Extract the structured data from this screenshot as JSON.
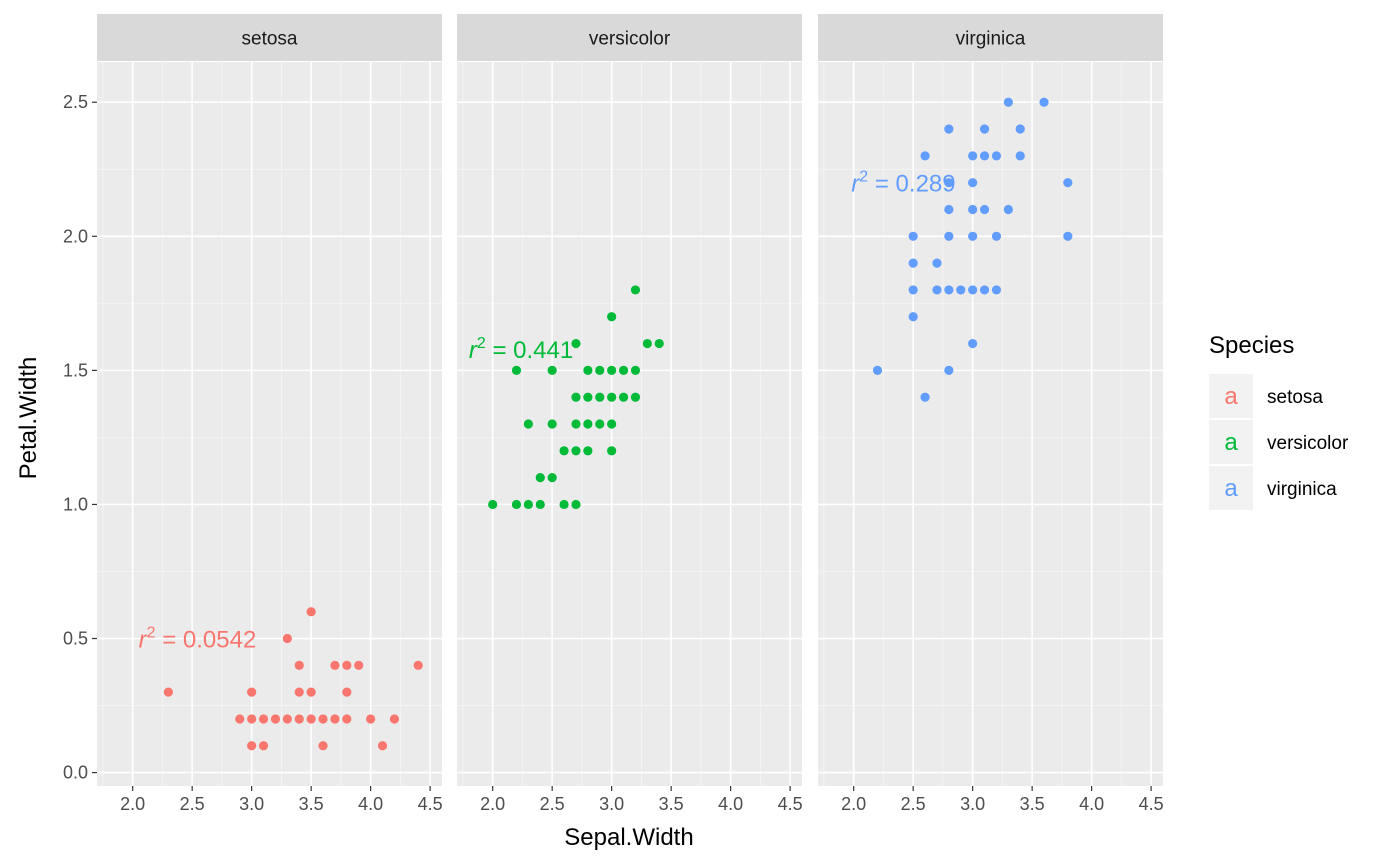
{
  "chart_data": {
    "type": "scatter",
    "xlabel": "Sepal.Width",
    "ylabel": "Petal.Width",
    "xlim": [
      1.7,
      4.6
    ],
    "ylim": [
      -0.05,
      2.65
    ],
    "x_ticks": [
      "2.0",
      "2.5",
      "3.0",
      "3.5",
      "4.0",
      "4.5"
    ],
    "y_ticks": [
      "0.0",
      "0.5",
      "1.0",
      "1.5",
      "2.0",
      "2.5"
    ],
    "grid": true,
    "facets": [
      "setosa",
      "versicolor",
      "virginica"
    ],
    "legend": {
      "title": "Species",
      "position": "right",
      "entries": [
        {
          "label": "setosa",
          "color": "#F8766D"
        },
        {
          "label": "versicolor",
          "color": "#00BA38"
        },
        {
          "label": "virginica",
          "color": "#619CFF"
        }
      ],
      "key_glyph": "a"
    },
    "panels": [
      {
        "facet": "setosa",
        "color": "#F8766D",
        "annotation": {
          "key": "r",
          "exponent": "2",
          "text": " = 0.0542",
          "x": 2.05,
          "y": 0.5
        },
        "points": [
          [
            2.3,
            0.3
          ],
          [
            2.9,
            0.2
          ],
          [
            3.0,
            0.2
          ],
          [
            3.0,
            0.1
          ],
          [
            3.0,
            0.3
          ],
          [
            3.1,
            0.2
          ],
          [
            3.1,
            0.1
          ],
          [
            3.2,
            0.2
          ],
          [
            3.3,
            0.2
          ],
          [
            3.3,
            0.5
          ],
          [
            3.4,
            0.2
          ],
          [
            3.4,
            0.4
          ],
          [
            3.4,
            0.3
          ],
          [
            3.5,
            0.2
          ],
          [
            3.5,
            0.3
          ],
          [
            3.5,
            0.6
          ],
          [
            3.6,
            0.2
          ],
          [
            3.6,
            0.1
          ],
          [
            3.7,
            0.2
          ],
          [
            3.7,
            0.4
          ],
          [
            3.8,
            0.2
          ],
          [
            3.8,
            0.3
          ],
          [
            3.8,
            0.4
          ],
          [
            3.9,
            0.4
          ],
          [
            4.0,
            0.2
          ],
          [
            4.1,
            0.1
          ],
          [
            4.2,
            0.2
          ],
          [
            4.4,
            0.4
          ]
        ]
      },
      {
        "facet": "versicolor",
        "color": "#00BA38",
        "annotation": {
          "key": "r",
          "exponent": "2",
          "text": " = 0.441",
          "x": 1.8,
          "y": 1.58
        },
        "points": [
          [
            2.0,
            1.0
          ],
          [
            2.2,
            1.0
          ],
          [
            2.2,
            1.5
          ],
          [
            2.3,
            1.0
          ],
          [
            2.3,
            1.3
          ],
          [
            2.4,
            1.0
          ],
          [
            2.4,
            1.1
          ],
          [
            2.5,
            1.1
          ],
          [
            2.5,
            1.3
          ],
          [
            2.5,
            1.5
          ],
          [
            2.6,
            1.0
          ],
          [
            2.6,
            1.2
          ],
          [
            2.7,
            1.0
          ],
          [
            2.7,
            1.2
          ],
          [
            2.7,
            1.3
          ],
          [
            2.7,
            1.4
          ],
          [
            2.7,
            1.6
          ],
          [
            2.8,
            1.2
          ],
          [
            2.8,
            1.3
          ],
          [
            2.8,
            1.4
          ],
          [
            2.8,
            1.5
          ],
          [
            2.9,
            1.3
          ],
          [
            2.9,
            1.4
          ],
          [
            2.9,
            1.5
          ],
          [
            3.0,
            1.2
          ],
          [
            3.0,
            1.3
          ],
          [
            3.0,
            1.4
          ],
          [
            3.0,
            1.5
          ],
          [
            3.0,
            1.7
          ],
          [
            3.1,
            1.4
          ],
          [
            3.1,
            1.5
          ],
          [
            3.2,
            1.4
          ],
          [
            3.2,
            1.5
          ],
          [
            3.2,
            1.8
          ],
          [
            3.3,
            1.6
          ],
          [
            3.4,
            1.6
          ]
        ]
      },
      {
        "facet": "virginica",
        "color": "#619CFF",
        "annotation": {
          "key": "r",
          "exponent": "2",
          "text": " = 0.289",
          "x": 1.98,
          "y": 2.2
        },
        "points": [
          [
            2.2,
            1.5
          ],
          [
            2.5,
            1.7
          ],
          [
            2.5,
            1.8
          ],
          [
            2.5,
            1.9
          ],
          [
            2.5,
            2.0
          ],
          [
            2.6,
            1.4
          ],
          [
            2.6,
            2.3
          ],
          [
            2.7,
            1.8
          ],
          [
            2.7,
            1.9
          ],
          [
            2.8,
            1.5
          ],
          [
            2.8,
            1.8
          ],
          [
            2.8,
            2.0
          ],
          [
            2.8,
            2.1
          ],
          [
            2.8,
            2.2
          ],
          [
            2.8,
            2.4
          ],
          [
            2.9,
            1.8
          ],
          [
            3.0,
            1.6
          ],
          [
            3.0,
            1.8
          ],
          [
            3.0,
            2.0
          ],
          [
            3.0,
            2.1
          ],
          [
            3.0,
            2.2
          ],
          [
            3.0,
            2.3
          ],
          [
            3.1,
            1.8
          ],
          [
            3.1,
            2.1
          ],
          [
            3.1,
            2.3
          ],
          [
            3.1,
            2.4
          ],
          [
            3.2,
            1.8
          ],
          [
            3.2,
            2.0
          ],
          [
            3.2,
            2.3
          ],
          [
            3.3,
            2.1
          ],
          [
            3.3,
            2.5
          ],
          [
            3.4,
            2.3
          ],
          [
            3.4,
            2.4
          ],
          [
            3.6,
            2.5
          ],
          [
            3.8,
            2.0
          ],
          [
            3.8,
            2.2
          ]
        ]
      }
    ]
  }
}
